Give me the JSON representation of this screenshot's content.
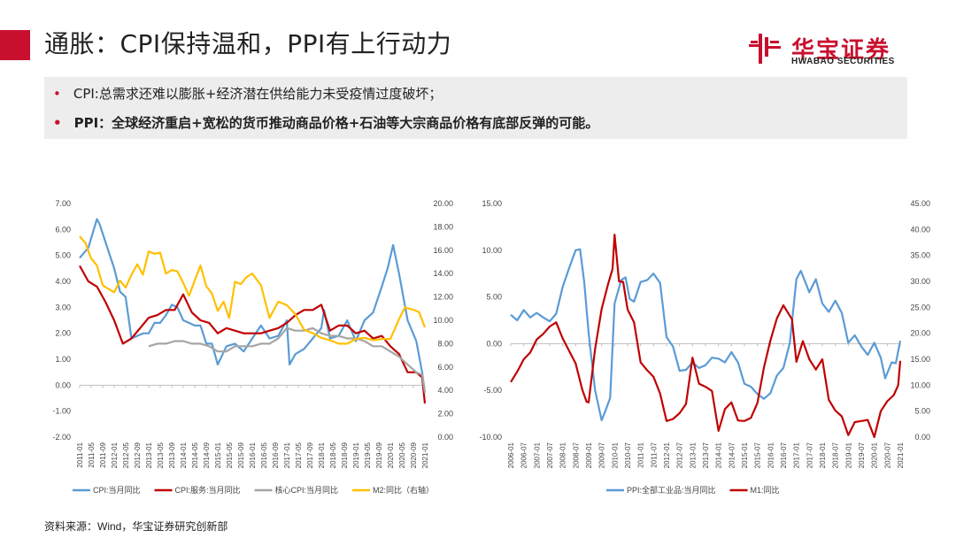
{
  "header": {
    "title": "通胀：CPI保持温和，PPI有上行动力",
    "logo_cn": "华宝证券",
    "logo_en": "HWABAO SECURITIES"
  },
  "bullets": [
    "CPI:总需求还难以膨胀+经济潜在供给能力未受疫情过度破坏；",
    "PPI：全球经济重启+宽松的货币推动商品价格+石油等大宗商品价格有底部反弹的可能。"
  ],
  "footer": {
    "source": "资料来源：Wind，华宝证券研究创新部"
  },
  "colors": {
    "accent": "#c8102e",
    "blue": "#5b9bd5",
    "red": "#c00000",
    "gray": "#a5a5a5",
    "yellow": "#ffc000"
  },
  "chart_data": [
    {
      "type": "line",
      "left_ylim": [
        -2,
        7
      ],
      "left_yticks": [
        "7.00",
        "6.00",
        "5.00",
        "4.00",
        "3.00",
        "2.00",
        "1.00",
        "0.00",
        "-1.00",
        "-2.00"
      ],
      "right_ylim": [
        0,
        20
      ],
      "right_yticks": [
        "20.00",
        "18.00",
        "16.00",
        "14.00",
        "12.00",
        "10.00",
        "8.00",
        "6.00",
        "4.00",
        "2.00",
        "0.00"
      ],
      "x_start": 2011.0,
      "x_end": 2021.0,
      "x_ticks": [
        "2011-01",
        "2011-05",
        "2011-09",
        "2012-01",
        "2012-05",
        "2012-09",
        "2013-01",
        "2013-05",
        "2013-09",
        "2014-01",
        "2014-05",
        "2014-09",
        "2015-01",
        "2015-05",
        "2015-09",
        "2016-01",
        "2016-05",
        "2016-09",
        "2017-01",
        "2017-05",
        "2017-09",
        "2018-01",
        "2018-05",
        "2018-09",
        "2019-01",
        "2019-05",
        "2019-09",
        "2020-01",
        "2020-05",
        "2020-09",
        "2021-01"
      ],
      "series": [
        {
          "name": "CPI:当月同比",
          "axis": "left",
          "color": "#5b9bd5",
          "x": [
            2011.0,
            2011.25,
            2011.5,
            2011.58,
            2011.75,
            2012.0,
            2012.17,
            2012.33,
            2012.5,
            2012.67,
            2012.83,
            2013.0,
            2013.17,
            2013.33,
            2013.5,
            2013.67,
            2013.83,
            2014.0,
            2014.17,
            2014.33,
            2014.5,
            2014.67,
            2014.83,
            2015.0,
            2015.25,
            2015.5,
            2015.75,
            2016.0,
            2016.25,
            2016.5,
            2016.75,
            2017.0,
            2017.08,
            2017.25,
            2017.5,
            2017.75,
            2018.0,
            2018.08,
            2018.25,
            2018.5,
            2018.75,
            2019.0,
            2019.25,
            2019.5,
            2019.75,
            2019.92,
            2020.08,
            2020.25,
            2020.5,
            2020.75,
            2020.92,
            2021.0
          ],
          "values": [
            4.9,
            5.3,
            6.4,
            6.2,
            5.5,
            4.5,
            3.6,
            3.4,
            1.8,
            1.9,
            2.0,
            2.0,
            2.4,
            2.4,
            2.7,
            3.1,
            3.0,
            2.5,
            2.4,
            2.3,
            2.3,
            1.6,
            1.6,
            0.8,
            1.5,
            1.6,
            1.3,
            1.8,
            2.3,
            1.8,
            1.9,
            2.5,
            0.8,
            1.2,
            1.4,
            1.8,
            2.2,
            2.9,
            1.8,
            1.9,
            2.5,
            1.7,
            2.5,
            2.8,
            3.8,
            4.5,
            5.4,
            4.3,
            2.5,
            1.7,
            0.5,
            -0.3
          ]
        },
        {
          "name": "CPI:服务:当月同比",
          "axis": "left",
          "color": "#c00000",
          "x": [
            2011.0,
            2011.25,
            2011.5,
            2011.75,
            2012.0,
            2012.25,
            2012.5,
            2012.75,
            2013.0,
            2013.25,
            2013.5,
            2013.75,
            2014.0,
            2014.25,
            2014.5,
            2014.75,
            2015.0,
            2015.25,
            2015.5,
            2015.75,
            2016.0,
            2016.25,
            2016.5,
            2016.75,
            2017.0,
            2017.25,
            2017.5,
            2017.75,
            2018.0,
            2018.25,
            2018.5,
            2018.75,
            2019.0,
            2019.25,
            2019.5,
            2019.75,
            2020.0,
            2020.25,
            2020.5,
            2020.75,
            2020.92,
            2021.0
          ],
          "values": [
            4.6,
            4.0,
            3.8,
            3.2,
            2.5,
            1.6,
            1.8,
            2.2,
            2.6,
            2.7,
            2.9,
            2.9,
            3.5,
            2.8,
            2.5,
            2.4,
            2.0,
            2.2,
            2.1,
            2.0,
            2.0,
            2.0,
            2.1,
            2.2,
            2.4,
            2.7,
            2.9,
            2.9,
            3.1,
            2.1,
            2.3,
            2.3,
            2.0,
            2.1,
            1.8,
            1.9,
            1.5,
            1.2,
            0.5,
            0.5,
            0.3,
            -0.7
          ]
        },
        {
          "name": "核心CPI:当月同比",
          "axis": "left",
          "color": "#a5a5a5",
          "x": [
            2013.0,
            2013.25,
            2013.5,
            2013.75,
            2014.0,
            2014.25,
            2014.5,
            2014.75,
            2015.0,
            2015.25,
            2015.5,
            2015.75,
            2016.0,
            2016.25,
            2016.5,
            2016.75,
            2017.0,
            2017.25,
            2017.5,
            2017.75,
            2018.0,
            2018.25,
            2018.5,
            2018.75,
            2019.0,
            2019.25,
            2019.5,
            2019.75,
            2020.0,
            2020.25,
            2020.5,
            2020.75,
            2020.92,
            2021.0
          ],
          "values": [
            1.5,
            1.6,
            1.6,
            1.7,
            1.7,
            1.6,
            1.6,
            1.5,
            1.3,
            1.3,
            1.5,
            1.5,
            1.5,
            1.6,
            1.6,
            1.8,
            2.2,
            2.1,
            2.1,
            2.2,
            2.0,
            1.9,
            1.9,
            1.8,
            1.8,
            1.7,
            1.5,
            1.5,
            1.3,
            1.1,
            0.8,
            0.5,
            0.4,
            -0.3
          ]
        },
        {
          "name": "M2:同比（右轴）",
          "axis": "right",
          "color": "#ffc000",
          "x": [
            2011.0,
            2011.17,
            2011.33,
            2011.5,
            2011.67,
            2011.83,
            2012.0,
            2012.17,
            2012.33,
            2012.5,
            2012.67,
            2012.83,
            2013.0,
            2013.17,
            2013.33,
            2013.5,
            2013.67,
            2013.83,
            2014.0,
            2014.17,
            2014.33,
            2014.5,
            2014.67,
            2014.83,
            2015.0,
            2015.17,
            2015.33,
            2015.5,
            2015.67,
            2015.83,
            2016.0,
            2016.25,
            2016.5,
            2016.75,
            2017.0,
            2017.25,
            2017.5,
            2017.75,
            2018.0,
            2018.25,
            2018.5,
            2018.75,
            2019.0,
            2019.25,
            2019.5,
            2019.75,
            2020.0,
            2020.25,
            2020.42,
            2020.67,
            2020.83,
            2021.0
          ],
          "values": [
            17.2,
            16.6,
            15.3,
            14.7,
            13.0,
            12.7,
            12.4,
            13.4,
            12.8,
            13.9,
            14.8,
            13.9,
            15.9,
            15.7,
            15.8,
            14.0,
            14.3,
            14.2,
            13.2,
            12.1,
            13.4,
            14.7,
            12.9,
            12.3,
            10.8,
            11.6,
            10.2,
            13.3,
            13.1,
            13.7,
            14.0,
            13.0,
            10.2,
            11.6,
            11.3,
            10.5,
            9.2,
            8.9,
            8.5,
            8.3,
            8.0,
            8.0,
            8.4,
            8.5,
            8.3,
            8.4,
            8.4,
            10.1,
            11.1,
            10.9,
            10.7,
            9.4
          ]
        }
      ]
    },
    {
      "type": "line",
      "left_ylim": [
        -10,
        15
      ],
      "left_yticks": [
        "15.00",
        "10.00",
        "5.00",
        "0.00",
        "-5.00",
        "-10.00"
      ],
      "right_ylim": [
        0,
        45
      ],
      "right_yticks": [
        "45.00",
        "40.00",
        "35.00",
        "30.00",
        "25.00",
        "20.00",
        "15.00",
        "10.00",
        "5.00",
        "0.00"
      ],
      "x_start": 2006.0,
      "x_end": 2021.0,
      "x_ticks": [
        "2006-01",
        "2006-07",
        "2007-01",
        "2007-07",
        "2008-01",
        "2008-07",
        "2009-01",
        "2009-07",
        "2010-01",
        "2010-07",
        "2011-01",
        "2011-07",
        "2012-01",
        "2012-07",
        "2013-01",
        "2013-07",
        "2014-01",
        "2014-07",
        "2015-01",
        "2015-07",
        "2016-01",
        "2016-07",
        "2017-01",
        "2017-07",
        "2018-01",
        "2018-07",
        "2019-01",
        "2019-07",
        "2020-01",
        "2020-07",
        "2021-01"
      ],
      "series": [
        {
          "name": "PPI:全部工业品:当月同比",
          "axis": "left",
          "color": "#5b9bd5",
          "x": [
            2006.0,
            2006.25,
            2006.5,
            2006.75,
            2007.0,
            2007.25,
            2007.5,
            2007.75,
            2008.0,
            2008.25,
            2008.5,
            2008.67,
            2008.83,
            2009.0,
            2009.25,
            2009.5,
            2009.67,
            2009.83,
            2010.0,
            2010.25,
            2010.42,
            2010.58,
            2010.75,
            2011.0,
            2011.25,
            2011.5,
            2011.75,
            2012.0,
            2012.25,
            2012.5,
            2012.75,
            2013.0,
            2013.25,
            2013.5,
            2013.75,
            2014.0,
            2014.25,
            2014.5,
            2014.75,
            2015.0,
            2015.25,
            2015.5,
            2015.75,
            2016.0,
            2016.25,
            2016.5,
            2016.75,
            2017.0,
            2017.17,
            2017.5,
            2017.75,
            2018.0,
            2018.25,
            2018.5,
            2018.75,
            2019.0,
            2019.25,
            2019.5,
            2019.75,
            2020.0,
            2020.25,
            2020.42,
            2020.67,
            2020.83,
            2021.0
          ],
          "values": [
            3.1,
            2.5,
            3.6,
            2.8,
            3.3,
            2.8,
            2.4,
            3.2,
            6.1,
            8.1,
            10.0,
            10.1,
            6.6,
            1.1,
            -5.0,
            -8.2,
            -7.0,
            -5.8,
            4.3,
            6.8,
            7.1,
            4.8,
            4.5,
            6.6,
            6.8,
            7.5,
            6.5,
            0.7,
            -0.3,
            -2.9,
            -2.8,
            -2.0,
            -2.6,
            -2.3,
            -1.5,
            -1.6,
            -2.0,
            -0.9,
            -2.0,
            -4.3,
            -4.6,
            -5.4,
            -5.9,
            -5.3,
            -3.4,
            -2.6,
            0.1,
            6.9,
            7.8,
            5.5,
            6.9,
            4.3,
            3.4,
            4.6,
            3.3,
            0.1,
            0.9,
            -0.3,
            -1.2,
            0.1,
            -1.5,
            -3.7,
            -2.0,
            -2.1,
            0.3
          ]
        },
        {
          "name": "M1:同比",
          "axis": "right",
          "color": "#c00000",
          "x": [
            2006.0,
            2006.25,
            2006.5,
            2006.75,
            2007.0,
            2007.25,
            2007.5,
            2007.75,
            2008.0,
            2008.25,
            2008.5,
            2008.75,
            2008.92,
            2009.0,
            2009.25,
            2009.5,
            2009.75,
            2009.92,
            2010.0,
            2010.17,
            2010.33,
            2010.5,
            2010.75,
            2011.0,
            2011.25,
            2011.5,
            2011.75,
            2012.0,
            2012.25,
            2012.5,
            2012.75,
            2013.0,
            2013.25,
            2013.5,
            2013.75,
            2014.0,
            2014.25,
            2014.5,
            2014.75,
            2015.0,
            2015.25,
            2015.5,
            2015.75,
            2016.0,
            2016.25,
            2016.5,
            2016.67,
            2016.83,
            2017.0,
            2017.25,
            2017.5,
            2017.75,
            2018.0,
            2018.25,
            2018.5,
            2018.75,
            2019.0,
            2019.25,
            2019.5,
            2019.75,
            2020.0,
            2020.25,
            2020.5,
            2020.75,
            2020.92,
            2021.0
          ],
          "values": [
            10.6,
            12.6,
            15.0,
            16.3,
            18.8,
            19.9,
            21.3,
            22.1,
            19.0,
            16.6,
            14.2,
            9.2,
            6.8,
            6.7,
            17.0,
            24.7,
            29.5,
            32.4,
            39.0,
            30.0,
            29.9,
            24.6,
            22.1,
            14.4,
            12.9,
            11.6,
            8.4,
            3.1,
            3.5,
            4.6,
            6.4,
            15.3,
            10.3,
            9.7,
            8.9,
            1.2,
            5.4,
            6.7,
            3.2,
            3.1,
            3.7,
            6.6,
            13.4,
            18.6,
            22.9,
            25.4,
            24.0,
            22.7,
            14.5,
            18.5,
            15.0,
            13.0,
            15.0,
            7.2,
            5.1,
            4.0,
            0.4,
            2.9,
            3.1,
            3.3,
            0.0,
            5.0,
            6.9,
            8.1,
            10.0,
            14.7
          ]
        }
      ]
    }
  ]
}
